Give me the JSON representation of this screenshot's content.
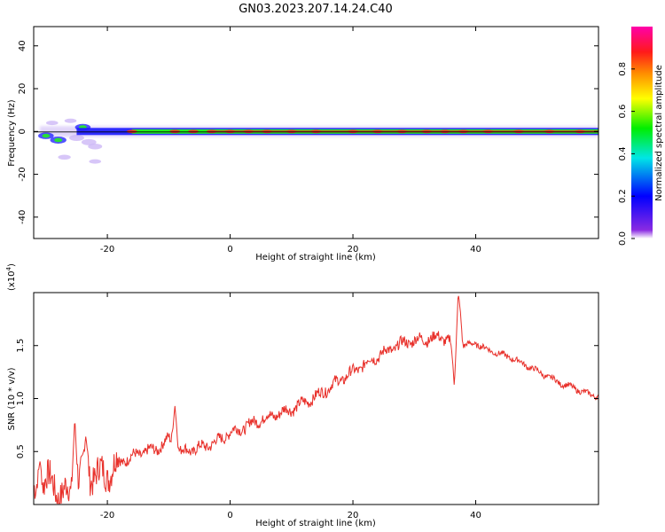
{
  "title": "GN03.2023.207.14.24.C40",
  "colors": {
    "axis": "#000000",
    "signal_line": "#e8302a",
    "band_core": "#e8302a",
    "band_mid": "#22ee22",
    "band_outer": "#1a1aff",
    "band_halo": "#c9b3f5"
  },
  "chart_data": [
    {
      "type": "heatmap",
      "xlabel": "Height of straight line (km)",
      "ylabel": "Frequency (Hz)",
      "xlim": [
        -32,
        60
      ],
      "ylim": [
        -50,
        49
      ],
      "xticks": [
        -20,
        0,
        20,
        40
      ],
      "yticks": [
        -40,
        -20,
        0,
        20,
        40
      ],
      "grid": false,
      "colorbar": {
        "label": "Normalized spectral amplitude",
        "range": [
          0.0,
          1.0
        ],
        "ticks": [
          "0.0",
          "0.2",
          "0.4",
          "0.6",
          "0.8"
        ],
        "tick_values": [
          0.0,
          0.2,
          0.4,
          0.6,
          0.8
        ],
        "colormap": [
          "#ff00aa",
          "#ff1a1a",
          "#ff8c00",
          "#ffff00",
          "#00ee00",
          "#00e6e6",
          "#0000ff",
          "#8a2be2",
          "#ffffff"
        ]
      },
      "band_center_hz": 0,
      "band_width_hz": [
        -1.5,
        1.5
      ],
      "peak_blobs_km": [
        -16,
        -9,
        -6,
        -3,
        0,
        3,
        6,
        10,
        14,
        20,
        24,
        28,
        32,
        35,
        38,
        42,
        47,
        52,
        57
      ],
      "scatter_patches": [
        {
          "x": -30,
          "y": -2,
          "v": 0.35
        },
        {
          "x": -28,
          "y": -4,
          "v": 0.4
        },
        {
          "x": -27,
          "y": -12,
          "v": 0.15
        },
        {
          "x": -25,
          "y": -3,
          "v": 0.3
        },
        {
          "x": -24,
          "y": 2,
          "v": 0.35
        },
        {
          "x": -23,
          "y": -5,
          "v": 0.3
        },
        {
          "x": -22,
          "y": -7,
          "v": 0.25
        },
        {
          "x": -22,
          "y": -14,
          "v": 0.1
        },
        {
          "x": -29,
          "y": 4,
          "v": 0.1
        },
        {
          "x": -26,
          "y": 5,
          "v": 0.1
        }
      ]
    },
    {
      "type": "line",
      "xlabel": "Height of straight line (km)",
      "ylabel": "SNR (10 * v/v)",
      "y_multiplier_label": "(x10",
      "y_multiplier_exp": "4",
      "xlim": [
        -32,
        60
      ],
      "ylim": [
        0,
        2.0
      ],
      "xticks": [
        -20,
        0,
        20,
        40
      ],
      "yticks": [
        "0.5",
        "1.0",
        "1.5"
      ],
      "ytick_values": [
        0.5,
        1.0,
        1.5
      ],
      "grid": false,
      "series_envelope": {
        "x": [
          -32,
          -30,
          -28,
          -26,
          -24,
          -22,
          -20,
          -18,
          -16,
          -14,
          -12,
          -10,
          -8,
          -6,
          -4,
          -2,
          0,
          2,
          4,
          6,
          8,
          10,
          12,
          14,
          16,
          18,
          20,
          22,
          24,
          26,
          28,
          30,
          32,
          34,
          36,
          37,
          38,
          40,
          42,
          44,
          46,
          48,
          50,
          52,
          54,
          56,
          58,
          60
        ],
        "y": [
          0.08,
          0.25,
          0.12,
          0.1,
          0.3,
          0.28,
          0.3,
          0.4,
          0.45,
          0.5,
          0.52,
          0.62,
          0.5,
          0.52,
          0.55,
          0.6,
          0.68,
          0.72,
          0.78,
          0.82,
          0.86,
          0.9,
          0.96,
          1.02,
          1.1,
          1.18,
          1.25,
          1.33,
          1.4,
          1.46,
          1.52,
          1.55,
          1.56,
          1.58,
          1.55,
          1.85,
          1.5,
          1.52,
          1.46,
          1.42,
          1.38,
          1.32,
          1.26,
          1.2,
          1.14,
          1.1,
          1.05,
          1.02
        ]
      },
      "spikes": [
        {
          "x": -31,
          "y": 0.42
        },
        {
          "x": -25.3,
          "y": 0.82
        },
        {
          "x": -23.5,
          "y": 0.65
        },
        {
          "x": -9,
          "y": 0.93
        },
        {
          "x": 37.2,
          "y": 1.97
        },
        {
          "x": 36.5,
          "y": 1.12
        }
      ]
    }
  ]
}
